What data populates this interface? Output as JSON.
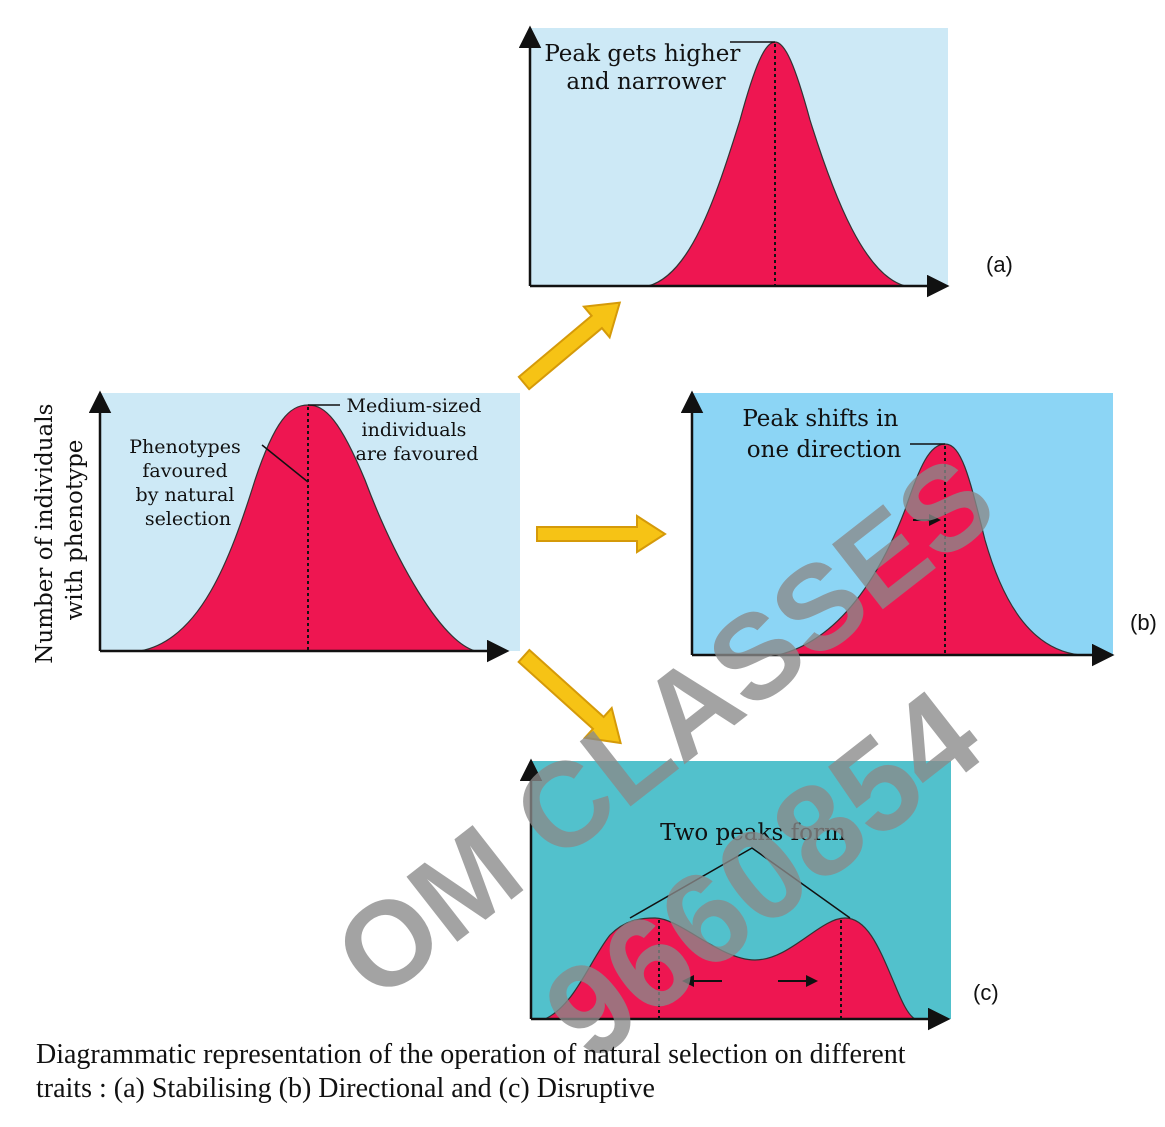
{
  "colors": {
    "panel_light": "#cde9f6",
    "panel_blue": "#8cd5f5",
    "panel_teal": "#52c1cc",
    "curve_fill": "#ee1651",
    "arrow_fill": "#f6c315",
    "arrow_stroke": "#d59a09",
    "axis": "#111111",
    "watermark": "#8a8a8a"
  },
  "icons": {
    "transition_arrows": "block-arrow-icon",
    "axis_arrows": "arrowhead-icon"
  },
  "original": {
    "y_axis_label_line1": "Number of individuals",
    "y_axis_label_line2": "with phenotype",
    "label_left_lines": [
      "Phenotypes",
      "favoured",
      "by natural",
      "selection"
    ],
    "label_right_lines": [
      "Medium-sized",
      "individuals",
      "are favoured"
    ]
  },
  "panel_a": {
    "tag": "(a)",
    "label_lines": [
      "Peak gets higher",
      "and narrower"
    ]
  },
  "panel_b": {
    "tag": "(b)",
    "label_lines": [
      "Peak shifts in",
      "one direction"
    ]
  },
  "panel_c": {
    "tag": "(c)",
    "label": "Two peaks form"
  },
  "caption": {
    "line1": "Diagrammatic representation of the operation of natural selection on different",
    "line2": "traits : (a) Stabilising (b) Directional and (c) Disruptive"
  },
  "watermark": {
    "line1": "OM CLASSES",
    "line2": "9660854"
  }
}
